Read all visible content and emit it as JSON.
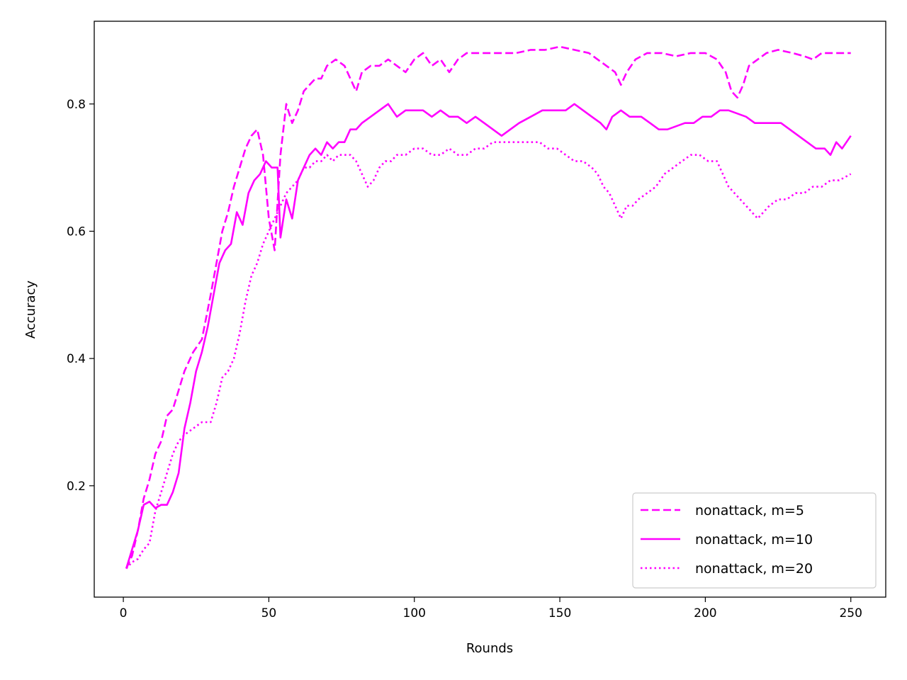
{
  "chart_data": {
    "type": "line",
    "xlabel": "Rounds",
    "ylabel": "Accuracy",
    "xlim": [
      -10,
      262
    ],
    "ylim": [
      0.025,
      0.93
    ],
    "xticks": [
      0,
      50,
      100,
      150,
      200,
      250
    ],
    "yticks": [
      0.2,
      0.4,
      0.6,
      0.8
    ],
    "ytick_labels": [
      "0.2",
      "0.4",
      "0.6",
      "0.8"
    ],
    "grid": false,
    "legend_position": "lower-right",
    "line_color": "#ff00ff",
    "series": [
      {
        "name": "nonattack, m=5",
        "style": "dashed",
        "points": [
          [
            1,
            0.07
          ],
          [
            3,
            0.09
          ],
          [
            5,
            0.13
          ],
          [
            7,
            0.18
          ],
          [
            9,
            0.21
          ],
          [
            11,
            0.25
          ],
          [
            13,
            0.27
          ],
          [
            15,
            0.31
          ],
          [
            17,
            0.32
          ],
          [
            19,
            0.35
          ],
          [
            21,
            0.38
          ],
          [
            24,
            0.41
          ],
          [
            27,
            0.43
          ],
          [
            30,
            0.5
          ],
          [
            32,
            0.55
          ],
          [
            34,
            0.6
          ],
          [
            36,
            0.63
          ],
          [
            38,
            0.67
          ],
          [
            40,
            0.7
          ],
          [
            42,
            0.73
          ],
          [
            44,
            0.75
          ],
          [
            46,
            0.76
          ],
          [
            48,
            0.72
          ],
          [
            50,
            0.62
          ],
          [
            52,
            0.57
          ],
          [
            54,
            0.72
          ],
          [
            56,
            0.8
          ],
          [
            58,
            0.77
          ],
          [
            60,
            0.79
          ],
          [
            62,
            0.82
          ],
          [
            64,
            0.83
          ],
          [
            66,
            0.84
          ],
          [
            68,
            0.84
          ],
          [
            70,
            0.86
          ],
          [
            73,
            0.87
          ],
          [
            76,
            0.86
          ],
          [
            78,
            0.84
          ],
          [
            80,
            0.82
          ],
          [
            82,
            0.85
          ],
          [
            85,
            0.86
          ],
          [
            88,
            0.86
          ],
          [
            91,
            0.87
          ],
          [
            94,
            0.86
          ],
          [
            97,
            0.85
          ],
          [
            100,
            0.87
          ],
          [
            103,
            0.88
          ],
          [
            106,
            0.86
          ],
          [
            109,
            0.87
          ],
          [
            112,
            0.85
          ],
          [
            115,
            0.87
          ],
          [
            118,
            0.88
          ],
          [
            122,
            0.88
          ],
          [
            126,
            0.88
          ],
          [
            130,
            0.88
          ],
          [
            135,
            0.88
          ],
          [
            140,
            0.885
          ],
          [
            145,
            0.885
          ],
          [
            150,
            0.89
          ],
          [
            155,
            0.885
          ],
          [
            160,
            0.88
          ],
          [
            163,
            0.87
          ],
          [
            166,
            0.86
          ],
          [
            169,
            0.85
          ],
          [
            171,
            0.83
          ],
          [
            173,
            0.85
          ],
          [
            176,
            0.87
          ],
          [
            180,
            0.88
          ],
          [
            185,
            0.88
          ],
          [
            190,
            0.875
          ],
          [
            195,
            0.88
          ],
          [
            200,
            0.88
          ],
          [
            204,
            0.87
          ],
          [
            207,
            0.85
          ],
          [
            209,
            0.82
          ],
          [
            211,
            0.81
          ],
          [
            213,
            0.83
          ],
          [
            215,
            0.86
          ],
          [
            218,
            0.87
          ],
          [
            221,
            0.88
          ],
          [
            225,
            0.885
          ],
          [
            230,
            0.88
          ],
          [
            234,
            0.875
          ],
          [
            237,
            0.87
          ],
          [
            240,
            0.88
          ],
          [
            244,
            0.88
          ],
          [
            247,
            0.88
          ],
          [
            250,
            0.88
          ]
        ]
      },
      {
        "name": "nonattack, m=10",
        "style": "solid",
        "points": [
          [
            1,
            0.07
          ],
          [
            3,
            0.1
          ],
          [
            5,
            0.13
          ],
          [
            7,
            0.17
          ],
          [
            9,
            0.175
          ],
          [
            11,
            0.165
          ],
          [
            13,
            0.17
          ],
          [
            15,
            0.17
          ],
          [
            17,
            0.19
          ],
          [
            19,
            0.22
          ],
          [
            21,
            0.29
          ],
          [
            23,
            0.33
          ],
          [
            25,
            0.38
          ],
          [
            27,
            0.41
          ],
          [
            29,
            0.45
          ],
          [
            31,
            0.5
          ],
          [
            33,
            0.55
          ],
          [
            35,
            0.57
          ],
          [
            37,
            0.58
          ],
          [
            39,
            0.63
          ],
          [
            41,
            0.61
          ],
          [
            43,
            0.66
          ],
          [
            45,
            0.68
          ],
          [
            47,
            0.69
          ],
          [
            49,
            0.71
          ],
          [
            51,
            0.7
          ],
          [
            53,
            0.7
          ],
          [
            54,
            0.59
          ],
          [
            56,
            0.65
          ],
          [
            58,
            0.62
          ],
          [
            60,
            0.68
          ],
          [
            62,
            0.7
          ],
          [
            64,
            0.72
          ],
          [
            66,
            0.73
          ],
          [
            68,
            0.72
          ],
          [
            70,
            0.74
          ],
          [
            72,
            0.73
          ],
          [
            74,
            0.74
          ],
          [
            76,
            0.74
          ],
          [
            78,
            0.76
          ],
          [
            80,
            0.76
          ],
          [
            82,
            0.77
          ],
          [
            85,
            0.78
          ],
          [
            88,
            0.79
          ],
          [
            91,
            0.8
          ],
          [
            94,
            0.78
          ],
          [
            97,
            0.79
          ],
          [
            100,
            0.79
          ],
          [
            103,
            0.79
          ],
          [
            106,
            0.78
          ],
          [
            109,
            0.79
          ],
          [
            112,
            0.78
          ],
          [
            115,
            0.78
          ],
          [
            118,
            0.77
          ],
          [
            121,
            0.78
          ],
          [
            124,
            0.77
          ],
          [
            127,
            0.76
          ],
          [
            130,
            0.75
          ],
          [
            133,
            0.76
          ],
          [
            136,
            0.77
          ],
          [
            140,
            0.78
          ],
          [
            144,
            0.79
          ],
          [
            148,
            0.79
          ],
          [
            152,
            0.79
          ],
          [
            155,
            0.8
          ],
          [
            158,
            0.79
          ],
          [
            161,
            0.78
          ],
          [
            164,
            0.77
          ],
          [
            166,
            0.76
          ],
          [
            168,
            0.78
          ],
          [
            171,
            0.79
          ],
          [
            174,
            0.78
          ],
          [
            178,
            0.78
          ],
          [
            181,
            0.77
          ],
          [
            184,
            0.76
          ],
          [
            187,
            0.76
          ],
          [
            190,
            0.765
          ],
          [
            193,
            0.77
          ],
          [
            196,
            0.77
          ],
          [
            199,
            0.78
          ],
          [
            202,
            0.78
          ],
          [
            205,
            0.79
          ],
          [
            208,
            0.79
          ],
          [
            211,
            0.785
          ],
          [
            214,
            0.78
          ],
          [
            217,
            0.77
          ],
          [
            220,
            0.77
          ],
          [
            223,
            0.77
          ],
          [
            226,
            0.77
          ],
          [
            229,
            0.76
          ],
          [
            232,
            0.75
          ],
          [
            235,
            0.74
          ],
          [
            238,
            0.73
          ],
          [
            241,
            0.73
          ],
          [
            243,
            0.72
          ],
          [
            245,
            0.74
          ],
          [
            247,
            0.73
          ],
          [
            250,
            0.75
          ]
        ]
      },
      {
        "name": "nonattack, m=20",
        "style": "dotted",
        "points": [
          [
            1,
            0.07
          ],
          [
            3,
            0.08
          ],
          [
            5,
            0.085
          ],
          [
            7,
            0.1
          ],
          [
            9,
            0.11
          ],
          [
            11,
            0.16
          ],
          [
            13,
            0.19
          ],
          [
            15,
            0.22
          ],
          [
            17,
            0.25
          ],
          [
            19,
            0.27
          ],
          [
            21,
            0.28
          ],
          [
            24,
            0.29
          ],
          [
            27,
            0.3
          ],
          [
            30,
            0.3
          ],
          [
            32,
            0.33
          ],
          [
            34,
            0.37
          ],
          [
            36,
            0.38
          ],
          [
            38,
            0.4
          ],
          [
            40,
            0.44
          ],
          [
            42,
            0.49
          ],
          [
            44,
            0.53
          ],
          [
            46,
            0.55
          ],
          [
            48,
            0.58
          ],
          [
            50,
            0.6
          ],
          [
            52,
            0.62
          ],
          [
            54,
            0.64
          ],
          [
            56,
            0.66
          ],
          [
            58,
            0.67
          ],
          [
            60,
            0.68
          ],
          [
            62,
            0.7
          ],
          [
            64,
            0.7
          ],
          [
            66,
            0.71
          ],
          [
            68,
            0.71
          ],
          [
            70,
            0.72
          ],
          [
            72,
            0.71
          ],
          [
            74,
            0.72
          ],
          [
            76,
            0.72
          ],
          [
            78,
            0.72
          ],
          [
            80,
            0.71
          ],
          [
            82,
            0.69
          ],
          [
            84,
            0.67
          ],
          [
            86,
            0.68
          ],
          [
            88,
            0.7
          ],
          [
            90,
            0.71
          ],
          [
            92,
            0.71
          ],
          [
            94,
            0.72
          ],
          [
            97,
            0.72
          ],
          [
            100,
            0.73
          ],
          [
            103,
            0.73
          ],
          [
            106,
            0.72
          ],
          [
            109,
            0.72
          ],
          [
            112,
            0.73
          ],
          [
            115,
            0.72
          ],
          [
            118,
            0.72
          ],
          [
            121,
            0.73
          ],
          [
            124,
            0.73
          ],
          [
            127,
            0.74
          ],
          [
            130,
            0.74
          ],
          [
            133,
            0.74
          ],
          [
            136,
            0.74
          ],
          [
            140,
            0.74
          ],
          [
            143,
            0.74
          ],
          [
            146,
            0.73
          ],
          [
            149,
            0.73
          ],
          [
            152,
            0.72
          ],
          [
            155,
            0.71
          ],
          [
            158,
            0.71
          ],
          [
            161,
            0.7
          ],
          [
            163,
            0.69
          ],
          [
            165,
            0.67
          ],
          [
            167,
            0.66
          ],
          [
            169,
            0.64
          ],
          [
            171,
            0.62
          ],
          [
            173,
            0.64
          ],
          [
            175,
            0.64
          ],
          [
            177,
            0.65
          ],
          [
            180,
            0.66
          ],
          [
            183,
            0.67
          ],
          [
            186,
            0.69
          ],
          [
            189,
            0.7
          ],
          [
            192,
            0.71
          ],
          [
            195,
            0.72
          ],
          [
            198,
            0.72
          ],
          [
            201,
            0.71
          ],
          [
            204,
            0.71
          ],
          [
            206,
            0.69
          ],
          [
            208,
            0.67
          ],
          [
            210,
            0.66
          ],
          [
            212,
            0.65
          ],
          [
            214,
            0.64
          ],
          [
            216,
            0.63
          ],
          [
            218,
            0.62
          ],
          [
            220,
            0.63
          ],
          [
            222,
            0.64
          ],
          [
            225,
            0.65
          ],
          [
            228,
            0.65
          ],
          [
            231,
            0.66
          ],
          [
            234,
            0.66
          ],
          [
            237,
            0.67
          ],
          [
            240,
            0.67
          ],
          [
            243,
            0.68
          ],
          [
            246,
            0.68
          ],
          [
            250,
            0.69
          ]
        ]
      }
    ]
  }
}
